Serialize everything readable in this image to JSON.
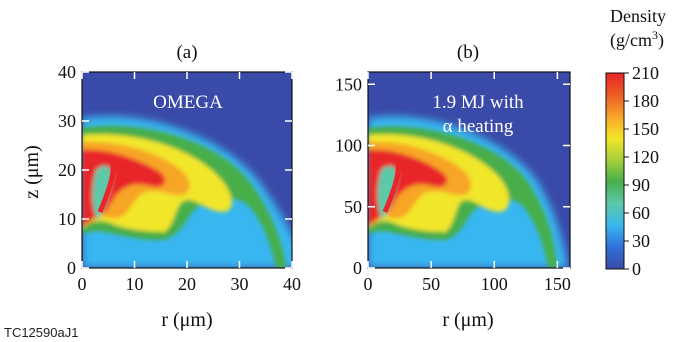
{
  "figure_id": "TC12590aJ1",
  "chart_data": [
    {
      "type": "heatmap",
      "panel_label": "(a)",
      "annotation": [
        "OMEGA"
      ],
      "xlabel": "r (μm)",
      "ylabel": "z (μm)",
      "xlim": [
        0,
        40
      ],
      "ylim": [
        0,
        40
      ],
      "x_ticks": [
        "0",
        "10",
        "20",
        "30",
        "40"
      ],
      "y_ticks": [
        "0",
        "10",
        "20",
        "30",
        "40"
      ],
      "description_values": {
        "peak_density_gcm3": 210,
        "background_density_gcm3": 0
      }
    },
    {
      "type": "heatmap",
      "panel_label": "(b)",
      "annotation": [
        "1.9 MJ with",
        "α heating"
      ],
      "xlabel": "r (μm)",
      "ylabel": "",
      "xlim": [
        0,
        160
      ],
      "ylim": [
        0,
        160
      ],
      "x_ticks": [
        "0",
        "50",
        "100",
        "150"
      ],
      "y_ticks": [
        "0",
        "50",
        "100",
        "150"
      ],
      "description_values": {
        "peak_density_gcm3": 210,
        "background_density_gcm3": 0
      }
    }
  ],
  "colorbar": {
    "title_line1": "Density",
    "title_line2": "(g/cm",
    "title_sup": "3",
    "title_close": ")",
    "min": 0,
    "max": 210,
    "ticks": [
      "210",
      "180",
      "150",
      "120",
      "90",
      "60",
      "30",
      "0"
    ],
    "colors": [
      "#3a4aa8",
      "#2f6fd8",
      "#39b6ef",
      "#5cc9a9",
      "#46ae4a",
      "#a7cf3a",
      "#f2e629",
      "#f7a528",
      "#ed5b24",
      "#e8262a"
    ]
  }
}
